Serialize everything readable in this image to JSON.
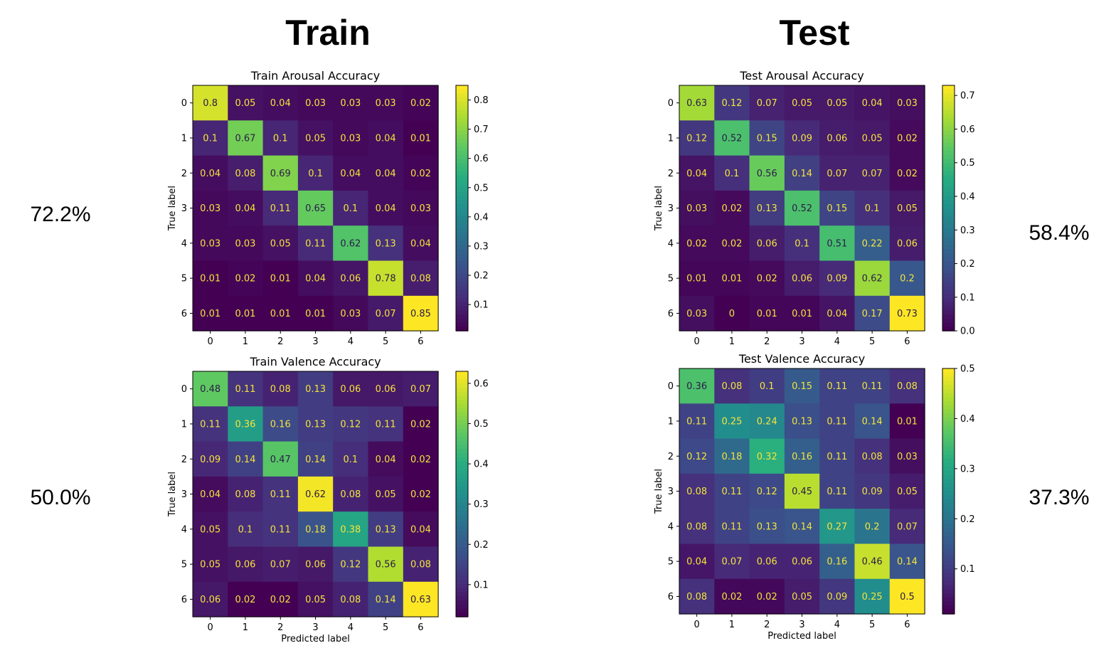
{
  "headers": {
    "train": "Train",
    "test": "Test"
  },
  "accuracies": {
    "train_arousal": "72.2%",
    "train_valence": "50.0%",
    "test_arousal": "58.4%",
    "test_valence": "37.3%"
  },
  "colors": {
    "colormap": "viridis",
    "light_text": "#f4e53a",
    "dark_text": "#2a1b4a"
  },
  "chart_data": [
    {
      "type": "heatmap",
      "title": "Train Arousal Accuracy",
      "xlabel": "",
      "ylabel": "True label",
      "x": [
        "0",
        "1",
        "2",
        "3",
        "4",
        "5",
        "6"
      ],
      "y": [
        "0",
        "1",
        "2",
        "3",
        "4",
        "5",
        "6"
      ],
      "values": [
        [
          0.8,
          0.05,
          0.04,
          0.03,
          0.03,
          0.03,
          0.02
        ],
        [
          0.1,
          0.67,
          0.1,
          0.05,
          0.03,
          0.04,
          0.01
        ],
        [
          0.04,
          0.08,
          0.69,
          0.1,
          0.04,
          0.04,
          0.02
        ],
        [
          0.03,
          0.04,
          0.11,
          0.65,
          0.1,
          0.04,
          0.03
        ],
        [
          0.03,
          0.03,
          0.05,
          0.11,
          0.62,
          0.13,
          0.04
        ],
        [
          0.01,
          0.02,
          0.01,
          0.04,
          0.06,
          0.78,
          0.08
        ],
        [
          0.01,
          0.01,
          0.01,
          0.01,
          0.03,
          0.07,
          0.85
        ]
      ],
      "vmin": 0.01,
      "vmax": 0.85,
      "colorbar_ticks": [
        "0.1",
        "0.2",
        "0.3",
        "0.4",
        "0.5",
        "0.6",
        "0.7",
        "0.8"
      ]
    },
    {
      "type": "heatmap",
      "title": "Train Valence Accuracy",
      "xlabel": "Predicted label",
      "ylabel": "True label",
      "x": [
        "0",
        "1",
        "2",
        "3",
        "4",
        "5",
        "6"
      ],
      "y": [
        "0",
        "1",
        "2",
        "3",
        "4",
        "5",
        "6"
      ],
      "values": [
        [
          0.48,
          0.11,
          0.08,
          0.13,
          0.06,
          0.06,
          0.07
        ],
        [
          0.11,
          0.36,
          0.16,
          0.13,
          0.12,
          0.11,
          0.02
        ],
        [
          0.09,
          0.14,
          0.47,
          0.14,
          0.1,
          0.04,
          0.02
        ],
        [
          0.04,
          0.08,
          0.11,
          0.62,
          0.08,
          0.05,
          0.02
        ],
        [
          0.05,
          0.1,
          0.11,
          0.18,
          0.38,
          0.13,
          0.04
        ],
        [
          0.05,
          0.06,
          0.07,
          0.06,
          0.12,
          0.56,
          0.08
        ],
        [
          0.06,
          0.02,
          0.02,
          0.05,
          0.08,
          0.14,
          0.63
        ]
      ],
      "vmin": 0.02,
      "vmax": 0.63,
      "colorbar_ticks": [
        "0.1",
        "0.2",
        "0.3",
        "0.4",
        "0.5",
        "0.6"
      ]
    },
    {
      "type": "heatmap",
      "title": "Test Arousal Accuracy",
      "xlabel": "",
      "ylabel": "True label",
      "x": [
        "0",
        "1",
        "2",
        "3",
        "4",
        "5",
        "6"
      ],
      "y": [
        "0",
        "1",
        "2",
        "3",
        "4",
        "5",
        "6"
      ],
      "values": [
        [
          0.63,
          0.12,
          0.07,
          0.05,
          0.05,
          0.04,
          0.03
        ],
        [
          0.12,
          0.52,
          0.15,
          0.09,
          0.06,
          0.05,
          0.02
        ],
        [
          0.04,
          0.1,
          0.56,
          0.14,
          0.07,
          0.07,
          0.02
        ],
        [
          0.03,
          0.02,
          0.13,
          0.52,
          0.15,
          0.1,
          0.05
        ],
        [
          0.02,
          0.02,
          0.06,
          0.1,
          0.51,
          0.22,
          0.06
        ],
        [
          0.01,
          0.01,
          0.02,
          0.06,
          0.09,
          0.62,
          0.2
        ],
        [
          0.03,
          0,
          0.01,
          0.01,
          0.04,
          0.17,
          0.73
        ]
      ],
      "vmin": 0,
      "vmax": 0.73,
      "colorbar_ticks": [
        "0.0",
        "0.1",
        "0.2",
        "0.3",
        "0.4",
        "0.5",
        "0.6",
        "0.7"
      ]
    },
    {
      "type": "heatmap",
      "title": "Test Valence Accuracy",
      "xlabel": "Predicted label",
      "ylabel": "True label",
      "x": [
        "0",
        "1",
        "2",
        "3",
        "4",
        "5",
        "6"
      ],
      "y": [
        "0",
        "1",
        "2",
        "3",
        "4",
        "5",
        "6"
      ],
      "values": [
        [
          0.36,
          0.08,
          0.1,
          0.15,
          0.11,
          0.11,
          0.08
        ],
        [
          0.11,
          0.25,
          0.24,
          0.13,
          0.11,
          0.14,
          0.01
        ],
        [
          0.12,
          0.18,
          0.32,
          0.16,
          0.11,
          0.08,
          0.03
        ],
        [
          0.08,
          0.11,
          0.12,
          0.45,
          0.11,
          0.09,
          0.05
        ],
        [
          0.08,
          0.11,
          0.13,
          0.14,
          0.27,
          0.2,
          0.07
        ],
        [
          0.04,
          0.07,
          0.06,
          0.06,
          0.16,
          0.46,
          0.14
        ],
        [
          0.08,
          0.02,
          0.02,
          0.05,
          0.09,
          0.25,
          0.5
        ]
      ],
      "vmin": 0.01,
      "vmax": 0.5,
      "colorbar_ticks": [
        "0.1",
        "0.2",
        "0.3",
        "0.4",
        "0.5"
      ]
    }
  ]
}
